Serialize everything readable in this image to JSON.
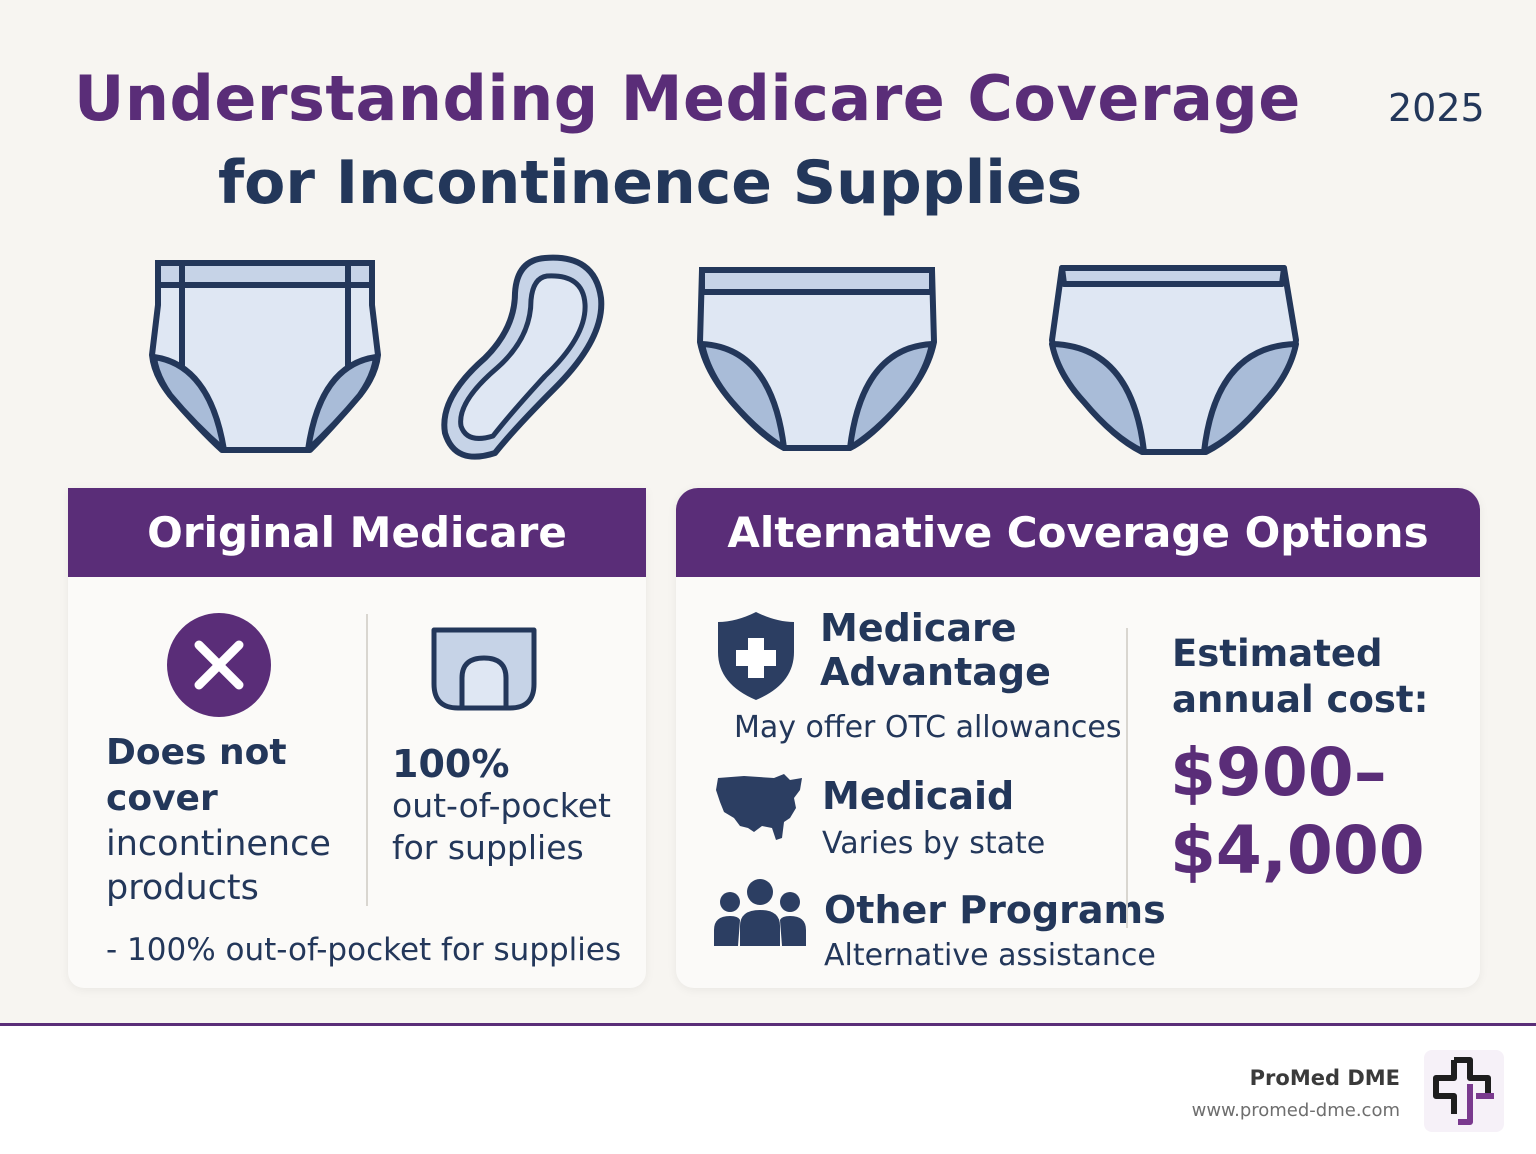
{
  "header": {
    "title_line1": "Understanding Medicare Coverage",
    "title_line2": "for Incontinence Supplies",
    "year": "2025"
  },
  "products": [
    {
      "icon": "pull-up-brief-icon"
    },
    {
      "icon": "pad-icon"
    },
    {
      "icon": "brief-icon"
    },
    {
      "icon": "protective-underwear-icon"
    }
  ],
  "original_medicare": {
    "heading": "Original Medicare",
    "not_cover_bold_1": "Does not",
    "not_cover_bold_2": "cover",
    "not_cover_text_1": "incontinence",
    "not_cover_text_2": "products",
    "oop_percent": "100%",
    "oop_text_1": "out-of-pocket",
    "oop_text_2": "for supplies",
    "bottom_note": "- 100% out-of-pocket for supplies"
  },
  "alternatives": {
    "heading": "Alternative Coverage Options",
    "items": [
      {
        "title_1": "Medicare",
        "title_2": "Advantage",
        "desc": "May offer OTC allowances",
        "icon": "shield-plus-icon"
      },
      {
        "title_1": "Medicaid",
        "desc": "Varies by state",
        "icon": "us-map-icon"
      },
      {
        "title_1": "Other Programs",
        "desc": "Alternative assistance",
        "icon": "people-group-icon"
      }
    ],
    "cost_label_1": "Estimated",
    "cost_label_2": "annual cost:",
    "cost_low": "$900–",
    "cost_high": "$4,000"
  },
  "footer": {
    "brand": "ProMed DME",
    "url": "www.promed-dme.com"
  },
  "colors": {
    "purple": "#5a2d78",
    "navy": "#23375a",
    "light_blue": "#dfe7f3",
    "mid_blue": "#a9bcd8"
  }
}
